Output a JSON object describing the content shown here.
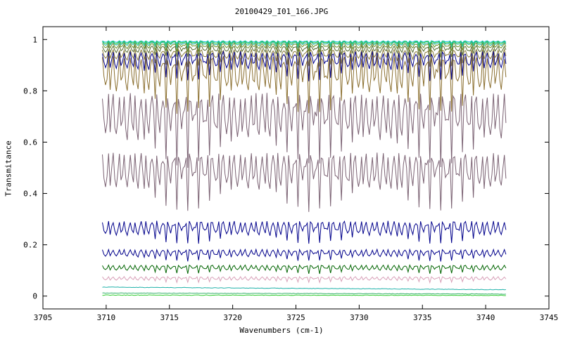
{
  "chart_data": {
    "type": "line",
    "title": "20100429_I01_166.JPG",
    "xlabel": "Wavenumbers (cm-1)",
    "ylabel": "Transmitance",
    "xlim": [
      3705,
      3745
    ],
    "ylim": [
      -0.05,
      1.05
    ],
    "xticks": [
      "3705",
      "3710",
      "3715",
      "3720",
      "3725",
      "3730",
      "3735",
      "3740",
      "3745"
    ],
    "yticks": [
      "0",
      "0.2",
      "0.4",
      "0.6",
      "0.8",
      "1"
    ],
    "x_range": [
      3709.7,
      3741.6
    ],
    "grid": false,
    "legend": "none",
    "series_count": 14,
    "series": [
      {
        "color": "#00bcd4",
        "baseline": 0.995,
        "depth": 0.01,
        "x": [
          3709.7,
          3741.6
        ]
      },
      {
        "color": "#32cd32",
        "baseline": 0.993,
        "depth": 0.015,
        "x": [
          3709.7,
          3741.6
        ]
      },
      {
        "color": "#20b2aa",
        "baseline": 0.99,
        "depth": 0.02,
        "x": [
          3709.7,
          3741.6
        ]
      },
      {
        "color": "#6b8e23",
        "baseline": 0.985,
        "depth": 0.03,
        "x": [
          3709.7,
          3741.6
        ]
      },
      {
        "color": "#556b2f",
        "baseline": 0.975,
        "depth": 0.04,
        "x": [
          3709.7,
          3741.6
        ]
      },
      {
        "color": "#8b7d3a",
        "baseline": 0.96,
        "depth": 0.06,
        "x": [
          3709.7,
          3741.6
        ]
      },
      {
        "color": "#00008b",
        "baseline": 0.95,
        "depth": 0.1,
        "x": [
          3709.7,
          3741.6
        ]
      },
      {
        "color": "#8b6f2f",
        "baseline": 0.93,
        "depth": 0.2,
        "x": [
          3709.7,
          3741.6
        ]
      },
      {
        "color": "#7b6273",
        "baseline": 0.78,
        "depth": 0.25,
        "x": [
          3709.7,
          3741.6
        ]
      },
      {
        "color": "#7b6273",
        "baseline": 0.55,
        "depth": 0.2,
        "x": [
          3709.7,
          3741.6
        ]
      },
      {
        "color": "#00008b",
        "baseline": 0.29,
        "depth": 0.08,
        "x": [
          3709.7,
          3741.6
        ]
      },
      {
        "color": "#00008b",
        "baseline": 0.18,
        "depth": 0.04,
        "x": [
          3709.7,
          3741.6
        ]
      },
      {
        "color": "#006400",
        "baseline": 0.12,
        "depth": 0.03,
        "x": [
          3709.7,
          3741.6
        ]
      },
      {
        "color": "#d8a0b8",
        "baseline": 0.075,
        "depth": 0.02,
        "x": [
          3709.7,
          3741.6
        ]
      }
    ],
    "flat_series": [
      {
        "color": "#20b2aa",
        "y": [
          0.035,
          0.025
        ]
      },
      {
        "color": "#3cb371",
        "y": [
          0.012,
          0.008
        ]
      },
      {
        "color": "#32cd32",
        "y": [
          0.004,
          0.003
        ]
      }
    ]
  }
}
